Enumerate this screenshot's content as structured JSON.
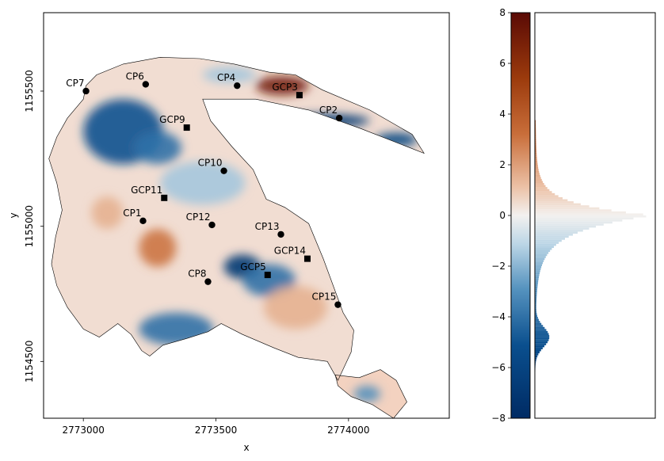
{
  "chart_data": [
    {
      "type": "map",
      "xlabel": "x",
      "ylabel": "y",
      "xlim": [
        2772850,
        2774380
      ],
      "ylim": [
        1154290,
        1155790
      ],
      "xticks": [
        {
          "value": 2773000,
          "label": "2773000"
        },
        {
          "value": 2773500,
          "label": "2773500"
        },
        {
          "value": 2774000,
          "label": "2774000"
        }
      ],
      "yticks": [
        {
          "value": 1154500,
          "label": "1154500"
        },
        {
          "value": 1155000,
          "label": "1155000"
        },
        {
          "value": 1155500,
          "label": "1155500"
        }
      ],
      "grid": false,
      "colormap": "blue-white-red diverging",
      "points": [
        {
          "label": "CP7",
          "x": 2773010,
          "y": 1155500,
          "marker": "circle"
        },
        {
          "label": "CP6",
          "x": 2773235,
          "y": 1155525,
          "marker": "circle"
        },
        {
          "label": "CP4",
          "x": 2773580,
          "y": 1155520,
          "marker": "circle"
        },
        {
          "label": "GCP3",
          "x": 2773815,
          "y": 1155485,
          "marker": "square"
        },
        {
          "label": "CP2",
          "x": 2773965,
          "y": 1155400,
          "marker": "circle"
        },
        {
          "label": "GCP9",
          "x": 2773390,
          "y": 1155365,
          "marker": "square"
        },
        {
          "label": "CP10",
          "x": 2773530,
          "y": 1155205,
          "marker": "circle"
        },
        {
          "label": "GCP11",
          "x": 2773305,
          "y": 1155105,
          "marker": "square"
        },
        {
          "label": "CP1",
          "x": 2773225,
          "y": 1155020,
          "marker": "circle"
        },
        {
          "label": "CP12",
          "x": 2773485,
          "y": 1155005,
          "marker": "circle"
        },
        {
          "label": "CP13",
          "x": 2773745,
          "y": 1154970,
          "marker": "circle"
        },
        {
          "label": "GCP14",
          "x": 2773845,
          "y": 1154880,
          "marker": "square"
        },
        {
          "label": "GCP5",
          "x": 2773695,
          "y": 1154820,
          "marker": "square"
        },
        {
          "label": "CP8",
          "x": 2773470,
          "y": 1154795,
          "marker": "circle"
        },
        {
          "label": "CP15",
          "x": 2773960,
          "y": 1154710,
          "marker": "circle"
        }
      ],
      "outline": [
        [
          2773000,
          1155470
        ],
        [
          2773010,
          1155520
        ],
        [
          2773050,
          1155560
        ],
        [
          2773150,
          1155600
        ],
        [
          2773290,
          1155625
        ],
        [
          2773440,
          1155620
        ],
        [
          2773570,
          1155600
        ],
        [
          2773700,
          1155570
        ],
        [
          2773800,
          1155560
        ],
        [
          2773900,
          1155505
        ],
        [
          2774080,
          1155430
        ],
        [
          2774240,
          1155340
        ],
        [
          2774285,
          1155270
        ],
        [
          2774050,
          1155360
        ],
        [
          2773850,
          1155430
        ],
        [
          2773650,
          1155470
        ],
        [
          2773450,
          1155470
        ],
        [
          2773480,
          1155390
        ],
        [
          2773560,
          1155295
        ],
        [
          2773640,
          1155210
        ],
        [
          2773690,
          1155100
        ],
        [
          2773760,
          1155070
        ],
        [
          2773850,
          1155010
        ],
        [
          2773905,
          1154880
        ],
        [
          2773980,
          1154680
        ],
        [
          2774020,
          1154615
        ],
        [
          2774010,
          1154535
        ],
        [
          2773960,
          1154430
        ],
        [
          2773920,
          1154500
        ],
        [
          2773810,
          1154515
        ],
        [
          2773720,
          1154550
        ],
        [
          2773600,
          1154600
        ],
        [
          2773520,
          1154640
        ],
        [
          2773470,
          1154610
        ],
        [
          2773390,
          1154585
        ],
        [
          2773300,
          1154560
        ],
        [
          2773250,
          1154520
        ],
        [
          2773220,
          1154540
        ],
        [
          2773180,
          1154600
        ],
        [
          2773130,
          1154640
        ],
        [
          2773060,
          1154590
        ],
        [
          2773000,
          1154620
        ],
        [
          2772940,
          1154700
        ],
        [
          2772900,
          1154780
        ],
        [
          2772880,
          1154860
        ],
        [
          2772895,
          1154960
        ],
        [
          2772920,
          1155060
        ],
        [
          2772900,
          1155160
        ],
        [
          2772870,
          1155250
        ],
        [
          2772900,
          1155330
        ],
        [
          2772940,
          1155400
        ]
      ],
      "inset_outline": [
        [
          2773950,
          1154450
        ],
        [
          2774040,
          1154440
        ],
        [
          2774120,
          1154470
        ],
        [
          2774180,
          1154430
        ],
        [
          2774220,
          1154350
        ],
        [
          2774170,
          1154290
        ],
        [
          2774090,
          1154340
        ],
        [
          2774010,
          1154370
        ],
        [
          2773960,
          1154410
        ]
      ],
      "blobs": [
        {
          "x": 2773150,
          "y": 1155350,
          "rx": 150,
          "ry": 120,
          "value": -5
        },
        {
          "x": 2773280,
          "y": 1155290,
          "rx": 90,
          "ry": 60,
          "value": -4
        },
        {
          "x": 2773600,
          "y": 1154850,
          "rx": 70,
          "ry": 45,
          "value": -7
        },
        {
          "x": 2773700,
          "y": 1154800,
          "rx": 100,
          "ry": 60,
          "value": -4
        },
        {
          "x": 2773350,
          "y": 1154620,
          "rx": 140,
          "ry": 60,
          "value": -4
        },
        {
          "x": 2773750,
          "y": 1155520,
          "rx": 100,
          "ry": 35,
          "value": 7
        },
        {
          "x": 2773900,
          "y": 1155390,
          "rx": 180,
          "ry": 25,
          "value": -7
        },
        {
          "x": 2774180,
          "y": 1155320,
          "rx": 80,
          "ry": 25,
          "value": -6
        },
        {
          "x": 2773280,
          "y": 1154920,
          "rx": 70,
          "ry": 70,
          "value": 3
        },
        {
          "x": 2773450,
          "y": 1155160,
          "rx": 160,
          "ry": 80,
          "value": -1.5
        },
        {
          "x": 2773800,
          "y": 1154700,
          "rx": 120,
          "ry": 80,
          "value": 1.5
        },
        {
          "x": 2773090,
          "y": 1155050,
          "rx": 60,
          "ry": 60,
          "value": 1.5
        },
        {
          "x": 2773550,
          "y": 1155560,
          "rx": 100,
          "ry": 30,
          "value": -1.5
        },
        {
          "x": 2774070,
          "y": 1154380,
          "rx": 50,
          "ry": 30,
          "value": -3
        }
      ]
    },
    {
      "type": "histogram-colorbar",
      "ylim": [
        -8,
        8
      ],
      "yticks": [
        {
          "value": 8,
          "label": "8"
        },
        {
          "value": 6,
          "label": "6"
        },
        {
          "value": 4,
          "label": "4"
        },
        {
          "value": 2,
          "label": "2"
        },
        {
          "value": 0,
          "label": "0"
        },
        {
          "value": -2,
          "label": "−2"
        },
        {
          "value": -4,
          "label": "−4"
        },
        {
          "value": -6,
          "label": "−6"
        },
        {
          "value": -8,
          "label": "−8"
        }
      ],
      "distribution": {
        "peak": 0,
        "secondary_peak": -4.8,
        "range": [
          -7.4,
          3.8
        ]
      }
    }
  ]
}
